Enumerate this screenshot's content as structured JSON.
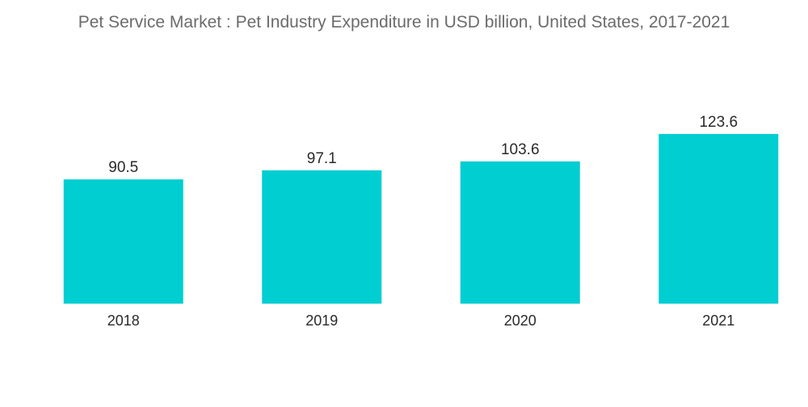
{
  "chart_data": {
    "type": "bar",
    "title": "Pet Service Market : Pet Industry Expenditure in USD billion, United States, 2017-2021",
    "categories": [
      "2018",
      "2019",
      "2020",
      "2021"
    ],
    "values": [
      90.5,
      97.1,
      103.6,
      123.6
    ],
    "value_labels": [
      "90.5",
      "97.1",
      "103.6",
      "123.6"
    ],
    "xlabel": "",
    "ylabel": "",
    "ylim": [
      0,
      140
    ],
    "grid": false,
    "legend": "none",
    "bar_color": "#00ced1"
  }
}
